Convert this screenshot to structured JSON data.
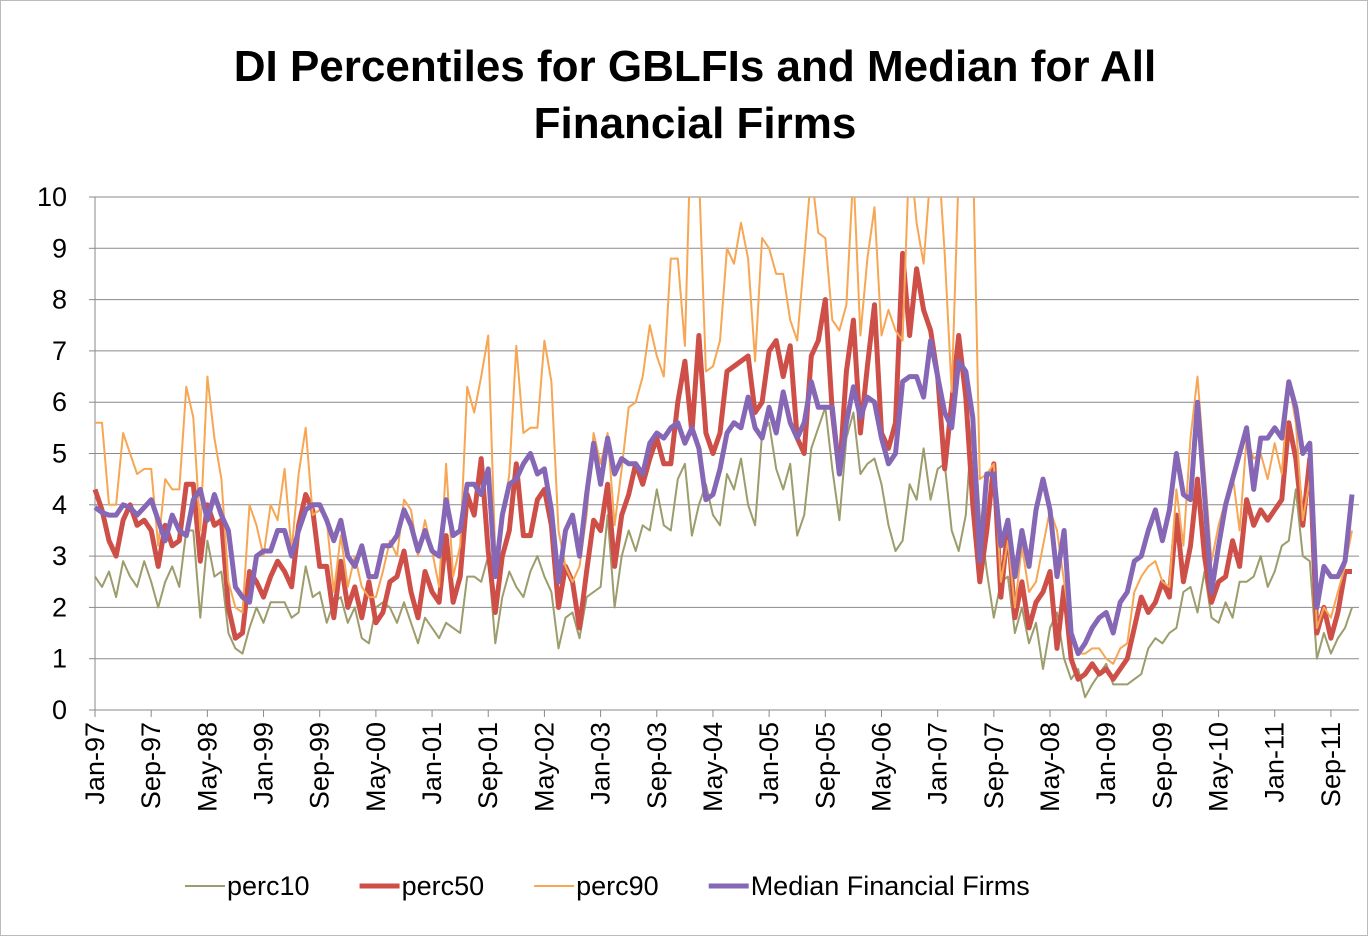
{
  "chart_data": {
    "type": "line",
    "title": "DI Percentiles for GBLFIs and Median for All Financial Firms",
    "categories": [
      "Jan-97",
      null,
      null,
      null,
      null,
      null,
      null,
      null,
      "Sep-97",
      null,
      null,
      null,
      null,
      null,
      null,
      null,
      "May-98",
      null,
      null,
      null,
      null,
      null,
      null,
      null,
      "Jan-99",
      null,
      null,
      null,
      null,
      null,
      null,
      null,
      "Sep-99",
      null,
      null,
      null,
      null,
      null,
      null,
      null,
      "May-00",
      null,
      null,
      null,
      null,
      null,
      null,
      null,
      "Jan-01",
      null,
      null,
      null,
      null,
      null,
      null,
      null,
      "Sep-01",
      null,
      null,
      null,
      null,
      null,
      null,
      null,
      "May-02",
      null,
      null,
      null,
      null,
      null,
      null,
      null,
      "Jan-03",
      null,
      null,
      null,
      null,
      null,
      null,
      null,
      "Sep-03",
      null,
      null,
      null,
      null,
      null,
      null,
      null,
      "May-04",
      null,
      null,
      null,
      null,
      null,
      null,
      null,
      "Jan-05",
      null,
      null,
      null,
      null,
      null,
      null,
      null,
      "Sep-05",
      null,
      null,
      null,
      null,
      null,
      null,
      null,
      "May-06",
      null,
      null,
      null,
      null,
      null,
      null,
      null,
      "Jan-07",
      null,
      null,
      null,
      null,
      null,
      null,
      null,
      "Sep-07",
      null,
      null,
      null,
      null,
      null,
      null,
      null,
      "May-08",
      null,
      null,
      null,
      null,
      null,
      null,
      null,
      "Jan-09",
      null,
      null,
      null,
      null,
      null,
      null,
      null,
      "Sep-09",
      null,
      null,
      null,
      null,
      null,
      null,
      null,
      "May-10",
      null,
      null,
      null,
      null,
      null,
      null,
      null,
      "Jan-11",
      null,
      null,
      null,
      null,
      null,
      null,
      null,
      "Sep-11",
      null,
      null,
      null
    ],
    "series": [
      {
        "name": "perc10",
        "color": "#9c9c6c",
        "width": 2,
        "values": [
          2.6,
          2.4,
          2.7,
          2.2,
          2.9,
          2.6,
          2.4,
          2.9,
          2.5,
          2.0,
          2.5,
          2.8,
          2.4,
          3.5,
          3.5,
          1.8,
          3.3,
          2.6,
          2.7,
          1.5,
          1.2,
          1.1,
          1.6,
          2.0,
          1.7,
          2.1,
          2.1,
          2.1,
          1.8,
          1.9,
          2.8,
          2.2,
          2.3,
          1.7,
          2.1,
          2.2,
          1.7,
          2.0,
          1.4,
          1.3,
          2.0,
          2.1,
          2.0,
          1.7,
          2.1,
          1.7,
          1.3,
          1.8,
          1.6,
          1.4,
          1.7,
          1.6,
          1.5,
          2.6,
          2.6,
          2.5,
          3.0,
          1.3,
          2.2,
          2.7,
          2.4,
          2.2,
          2.7,
          3.0,
          2.6,
          2.3,
          1.2,
          1.8,
          1.9,
          1.4,
          2.2,
          2.3,
          2.4,
          3.8,
          2.0,
          3.0,
          3.5,
          3.1,
          3.6,
          3.5,
          4.3,
          3.6,
          3.5,
          4.5,
          4.8,
          3.4,
          4.0,
          4.4,
          3.8,
          3.6,
          4.6,
          4.3,
          4.9,
          4.0,
          3.6,
          5.4,
          5.6,
          4.7,
          4.3,
          4.8,
          3.4,
          3.8,
          5.1,
          5.5,
          5.9,
          4.7,
          3.7,
          5.3,
          5.8,
          4.6,
          4.8,
          4.9,
          4.4,
          3.6,
          3.1,
          3.3,
          4.4,
          4.1,
          5.1,
          4.1,
          4.7,
          4.8,
          3.5,
          3.1,
          3.8,
          5.8,
          3.8,
          2.7,
          1.8,
          2.5,
          2.6,
          1.5,
          2.0,
          1.3,
          1.7,
          0.8,
          1.6,
          1.9,
          1.0,
          0.6,
          0.8,
          0.25,
          0.5,
          0.7,
          0.9,
          0.5,
          0.5,
          0.5,
          0.6,
          0.7,
          1.2,
          1.4,
          1.3,
          1.5,
          1.6,
          2.3,
          2.4,
          1.9,
          2.7,
          1.8,
          1.7,
          2.1,
          1.8,
          2.5,
          2.5,
          2.6,
          3.0,
          2.4,
          2.7,
          3.2,
          3.3,
          4.3,
          3.0,
          2.9,
          1.0,
          1.5,
          1.1,
          1.4,
          1.6,
          2.0
        ]
      },
      {
        "name": "perc50",
        "color": "#cd4f48",
        "width": 5,
        "values": [
          4.3,
          3.9,
          3.3,
          3.0,
          3.7,
          4.0,
          3.6,
          3.7,
          3.5,
          2.8,
          3.6,
          3.2,
          3.3,
          4.4,
          4.4,
          2.9,
          4.0,
          3.6,
          3.7,
          2.0,
          1.4,
          1.5,
          2.7,
          2.5,
          2.2,
          2.6,
          2.9,
          2.7,
          2.4,
          3.6,
          4.2,
          3.9,
          2.8,
          2.8,
          1.8,
          2.9,
          2.0,
          2.4,
          1.8,
          2.5,
          1.7,
          1.9,
          2.5,
          2.6,
          3.1,
          2.3,
          1.8,
          2.7,
          2.3,
          2.1,
          3.4,
          2.1,
          2.6,
          4.2,
          3.8,
          4.9,
          3.1,
          1.9,
          3.0,
          3.5,
          4.8,
          3.4,
          3.4,
          4.1,
          4.3,
          3.6,
          2.0,
          2.8,
          2.5,
          1.6,
          2.7,
          3.7,
          3.5,
          4.4,
          2.8,
          3.8,
          4.2,
          4.8,
          4.4,
          4.9,
          5.3,
          4.8,
          4.8,
          6.0,
          6.8,
          5.4,
          7.3,
          5.4,
          5.0,
          5.4,
          6.6,
          6.7,
          6.8,
          6.9,
          5.8,
          6.0,
          7.0,
          7.2,
          6.5,
          7.1,
          5.3,
          5.0,
          6.9,
          7.2,
          8.0,
          5.8,
          4.6,
          6.6,
          7.6,
          5.4,
          6.7,
          7.9,
          5.4,
          5.1,
          5.6,
          8.9,
          7.3,
          8.6,
          7.8,
          7.4,
          6.5,
          4.7,
          6.0,
          7.3,
          6.1,
          4.0,
          2.5,
          3.5,
          4.8,
          2.2,
          3.6,
          1.8,
          2.5,
          1.6,
          2.1,
          2.3,
          2.7,
          1.2,
          2.4,
          1.0,
          0.6,
          0.7,
          0.9,
          0.7,
          0.8,
          0.6,
          0.8,
          1.0,
          1.6,
          2.2,
          1.9,
          2.1,
          2.5,
          2.2,
          3.8,
          2.5,
          3.2,
          4.5,
          3.0,
          2.1,
          2.5,
          2.6,
          3.3,
          2.8,
          4.1,
          3.6,
          3.9,
          3.7,
          3.9,
          4.1,
          5.6,
          4.9,
          3.6,
          4.9,
          1.5,
          2.0,
          1.4,
          1.9,
          2.7,
          2.7
        ]
      },
      {
        "name": "perc90",
        "color": "#f7a654",
        "width": 2,
        "values": [
          5.6,
          5.6,
          4.0,
          4.0,
          5.4,
          5.0,
          4.6,
          4.7,
          4.7,
          3.2,
          4.5,
          4.3,
          4.3,
          6.3,
          5.7,
          3.5,
          6.5,
          5.3,
          4.5,
          2.5,
          2.0,
          1.9,
          4.0,
          3.6,
          3.0,
          4.0,
          3.7,
          4.7,
          3.1,
          4.6,
          5.5,
          3.8,
          3.9,
          3.7,
          2.3,
          3.4,
          2.4,
          3.0,
          2.4,
          2.2,
          2.2,
          2.7,
          3.3,
          3.0,
          4.1,
          3.9,
          3.0,
          3.7,
          3.1,
          2.4,
          4.8,
          2.6,
          3.2,
          6.3,
          5.8,
          6.5,
          7.3,
          3.0,
          3.7,
          4.6,
          7.1,
          5.4,
          5.5,
          5.5,
          7.2,
          6.4,
          3.5,
          2.8,
          2.5,
          2.8,
          3.8,
          5.4,
          4.8,
          5.4,
          3.6,
          4.7,
          5.9,
          6.0,
          6.5,
          7.5,
          6.9,
          6.5,
          8.8,
          8.8,
          7.1,
          12,
          10.5,
          6.6,
          6.7,
          7.2,
          9.0,
          8.7,
          9.5,
          8.8,
          6.8,
          9.2,
          9.0,
          8.5,
          8.5,
          7.6,
          7.2,
          8.8,
          10.5,
          9.3,
          9.2,
          7.6,
          7.4,
          7.9,
          10.5,
          7.3,
          8.8,
          9.8,
          7.3,
          7.8,
          7.4,
          7.2,
          11,
          9.5,
          8.7,
          10.5,
          11,
          8.9,
          6.2,
          10.5,
          11,
          11,
          4.5,
          4.6,
          4.8,
          2.5,
          3.3,
          2.0,
          3.2,
          2.3,
          2.5,
          3.2,
          3.9,
          3.5,
          2.5,
          1.6,
          1.1,
          1.1,
          1.2,
          1.2,
          1.0,
          0.9,
          1.2,
          1.3,
          2.3,
          2.6,
          2.8,
          2.9,
          2.5,
          2.4,
          4.3,
          3.2,
          5.3,
          6.5,
          4.7,
          2.9,
          3.6,
          4.1,
          4.6,
          3.5,
          5.3,
          4.9,
          5.0,
          4.5,
          5.2,
          4.6,
          6.4,
          5.6,
          3.7,
          4.5,
          1.6,
          2.0,
          1.8,
          2.3,
          2.8,
          3.5
        ]
      },
      {
        "name": "Median Financial Firms",
        "color": "#8567b5",
        "width": 5,
        "values": [
          3.95,
          3.85,
          3.8,
          3.8,
          4.0,
          3.95,
          3.8,
          3.95,
          4.1,
          3.7,
          3.3,
          3.8,
          3.5,
          3.4,
          4.1,
          4.3,
          3.7,
          4.2,
          3.8,
          3.5,
          2.4,
          2.2,
          2.1,
          3.0,
          3.1,
          3.1,
          3.5,
          3.5,
          3.0,
          3.5,
          3.9,
          4.0,
          4.0,
          3.7,
          3.3,
          3.7,
          3.0,
          2.8,
          3.2,
          2.6,
          2.6,
          3.2,
          3.2,
          3.4,
          3.9,
          3.6,
          3.1,
          3.5,
          3.1,
          3.0,
          4.1,
          3.4,
          3.5,
          4.4,
          4.4,
          4.2,
          4.7,
          2.6,
          3.8,
          4.4,
          4.5,
          4.8,
          5.0,
          4.6,
          4.7,
          3.9,
          2.5,
          3.5,
          3.8,
          3.0,
          4.2,
          5.2,
          4.4,
          5.3,
          4.6,
          4.9,
          4.8,
          4.8,
          4.6,
          5.2,
          5.4,
          5.3,
          5.5,
          5.6,
          5.2,
          5.5,
          5.1,
          4.1,
          4.2,
          4.7,
          5.4,
          5.6,
          5.5,
          6.1,
          5.5,
          5.3,
          5.9,
          5.4,
          6.2,
          5.6,
          5.3,
          5.6,
          6.4,
          5.9,
          5.9,
          5.9,
          4.6,
          5.6,
          6.3,
          5.7,
          6.1,
          6.0,
          5.3,
          4.8,
          5.0,
          6.4,
          6.5,
          6.5,
          6.1,
          7.2,
          6.5,
          5.8,
          5.5,
          6.8,
          6.6,
          5.7,
          2.9,
          4.6,
          4.6,
          3.2,
          3.7,
          2.6,
          3.5,
          2.8,
          3.9,
          4.5,
          3.9,
          2.6,
          3.5,
          1.5,
          1.1,
          1.3,
          1.6,
          1.8,
          1.9,
          1.5,
          2.1,
          2.3,
          2.9,
          3.0,
          3.5,
          3.9,
          3.3,
          3.9,
          5.0,
          4.2,
          4.1,
          6.0,
          4.2,
          2.3,
          3.2,
          4.0,
          4.5,
          5.0,
          5.5,
          4.3,
          5.3,
          5.3,
          5.5,
          5.3,
          6.4,
          5.9,
          5.0,
          5.2,
          2.0,
          2.8,
          2.6,
          2.6,
          2.9,
          4.2
        ]
      }
    ],
    "ylim": [
      0,
      10
    ],
    "yticks": [
      0,
      1,
      2,
      3,
      4,
      5,
      6,
      7,
      8,
      9,
      10
    ],
    "grid": true,
    "legend": "bottom"
  }
}
